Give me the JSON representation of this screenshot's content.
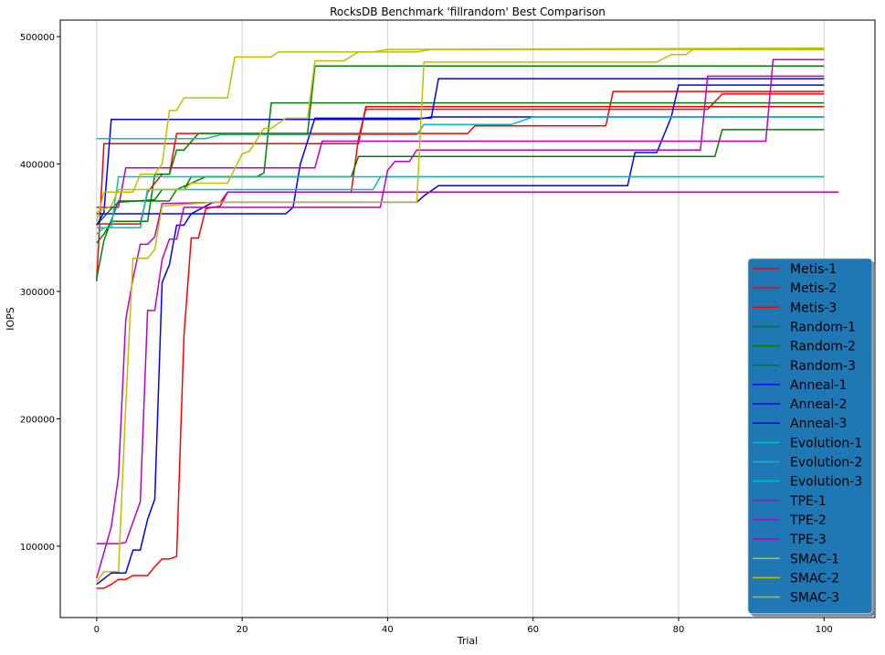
{
  "chart_data": {
    "type": "line",
    "title": "RocksDB Benchmark 'fillrandom' Best Comparison",
    "xlabel": "Trial",
    "ylabel": "IOPS",
    "xlim": [
      -5,
      107
    ],
    "ylim": [
      44000,
      513000
    ],
    "xticks": [
      0,
      20,
      40,
      60,
      80,
      100
    ],
    "yticks": [
      100000,
      200000,
      300000,
      400000,
      500000
    ],
    "grid": "vertical",
    "legend_placement": "lower-right",
    "legend_background": "#1f77b4",
    "series": [
      {
        "name": "Metis-1",
        "color": "#ff0000",
        "points": [
          [
            0,
            308000
          ],
          [
            1,
            416000
          ],
          [
            36,
            416000
          ],
          [
            37,
            445000
          ],
          [
            100,
            445000
          ]
        ]
      },
      {
        "name": "Metis-2",
        "color": "#ff0000",
        "points": [
          [
            0,
            353000
          ],
          [
            6,
            353000
          ],
          [
            7,
            378000
          ],
          [
            9,
            392000
          ],
          [
            10,
            392000
          ],
          [
            11,
            424000
          ],
          [
            51,
            424000
          ],
          [
            52,
            430000
          ],
          [
            70,
            430000
          ],
          [
            71,
            457000
          ],
          [
            100,
            457000
          ]
        ]
      },
      {
        "name": "Metis-3",
        "color": "#ff0000",
        "points": [
          [
            0,
            67000
          ],
          [
            1,
            67000
          ],
          [
            2,
            70000
          ],
          [
            3,
            74000
          ],
          [
            4,
            74000
          ],
          [
            5,
            77000
          ],
          [
            7,
            77000
          ],
          [
            8,
            84000
          ],
          [
            9,
            90000
          ],
          [
            10,
            90000
          ],
          [
            11,
            92000
          ],
          [
            12,
            265000
          ],
          [
            13,
            342000
          ],
          [
            14,
            342000
          ],
          [
            15,
            365000
          ],
          [
            17,
            367000
          ],
          [
            18,
            378000
          ],
          [
            35,
            378000
          ],
          [
            36,
            420000
          ],
          [
            37,
            443000
          ],
          [
            84,
            443000
          ],
          [
            86,
            455000
          ],
          [
            100,
            455000
          ]
        ]
      },
      {
        "name": "Random-1",
        "color": "#008000",
        "points": [
          [
            0,
            310000
          ],
          [
            1,
            340000
          ],
          [
            3,
            371000
          ],
          [
            10,
            371000
          ],
          [
            11,
            380000
          ],
          [
            15,
            390000
          ],
          [
            22,
            390000
          ],
          [
            23,
            393000
          ],
          [
            24,
            448000
          ],
          [
            100,
            448000
          ]
        ]
      },
      {
        "name": "Random-2",
        "color": "#008000",
        "points": [
          [
            0,
            338000
          ],
          [
            1,
            345000
          ],
          [
            2,
            355000
          ],
          [
            7,
            355000
          ],
          [
            8,
            392000
          ],
          [
            10,
            392000
          ],
          [
            11,
            411000
          ],
          [
            12,
            411000
          ],
          [
            14,
            424000
          ],
          [
            29,
            424000
          ],
          [
            30,
            477000
          ],
          [
            100,
            477000
          ]
        ]
      },
      {
        "name": "Random-3",
        "color": "#008000",
        "points": [
          [
            0,
            352000
          ],
          [
            2,
            365000
          ],
          [
            3,
            370000
          ],
          [
            8,
            372000
          ],
          [
            9,
            380000
          ],
          [
            12,
            380000
          ],
          [
            13,
            390000
          ],
          [
            35,
            390000
          ],
          [
            36,
            406000
          ],
          [
            85,
            406000
          ],
          [
            86,
            427000
          ],
          [
            100,
            427000
          ]
        ]
      },
      {
        "name": "Anneal-1",
        "color": "#0000ff",
        "points": [
          [
            0,
            352000
          ],
          [
            1,
            362000
          ],
          [
            2,
            435000
          ],
          [
            44,
            435000
          ],
          [
            46,
            437000
          ],
          [
            100,
            437000
          ]
        ]
      },
      {
        "name": "Anneal-2",
        "color": "#0000ff",
        "points": [
          [
            0,
            361000
          ],
          [
            26,
            361000
          ],
          [
            27,
            366000
          ],
          [
            28,
            400000
          ],
          [
            30,
            436000
          ],
          [
            46,
            436000
          ],
          [
            47,
            467000
          ],
          [
            100,
            467000
          ]
        ]
      },
      {
        "name": "Anneal-3",
        "color": "#0000ff",
        "points": [
          [
            0,
            70000
          ],
          [
            2,
            79000
          ],
          [
            4,
            79000
          ],
          [
            5,
            97000
          ],
          [
            6,
            97000
          ],
          [
            7,
            121000
          ],
          [
            8,
            137000
          ],
          [
            9,
            307000
          ],
          [
            10,
            321000
          ],
          [
            11,
            352000
          ],
          [
            12,
            352000
          ],
          [
            13,
            361000
          ],
          [
            16,
            370000
          ],
          [
            44,
            370000
          ],
          [
            45,
            375000
          ],
          [
            47,
            383000
          ],
          [
            73,
            383000
          ],
          [
            74,
            409000
          ],
          [
            77,
            409000
          ],
          [
            79,
            437000
          ],
          [
            80,
            462000
          ],
          [
            100,
            462000
          ]
        ]
      },
      {
        "name": "Evolution-1",
        "color": "#00bfbf",
        "points": [
          [
            0,
            420000
          ],
          [
            15,
            420000
          ],
          [
            17,
            423000
          ],
          [
            44,
            423000
          ],
          [
            45,
            431000
          ],
          [
            57,
            431000
          ],
          [
            60,
            437000
          ],
          [
            100,
            437000
          ]
        ]
      },
      {
        "name": "Evolution-2",
        "color": "#00bfbf",
        "points": [
          [
            0,
            350000
          ],
          [
            2,
            350000
          ],
          [
            3,
            390000
          ],
          [
            100,
            390000
          ]
        ]
      },
      {
        "name": "Evolution-3",
        "color": "#00bfbf",
        "points": [
          [
            0,
            345000
          ],
          [
            1,
            350000
          ],
          [
            6,
            350000
          ],
          [
            7,
            380000
          ],
          [
            38,
            380000
          ],
          [
            39,
            390000
          ],
          [
            100,
            390000
          ]
        ]
      },
      {
        "name": "TPE-1",
        "color": "#bf00bf",
        "points": [
          [
            0,
            102000
          ],
          [
            3,
            102000
          ],
          [
            4,
            103000
          ],
          [
            6,
            135000
          ],
          [
            7,
            285000
          ],
          [
            8,
            285000
          ],
          [
            9,
            325000
          ],
          [
            10,
            341000
          ],
          [
            11,
            341000
          ],
          [
            12,
            366000
          ],
          [
            39,
            366000
          ],
          [
            40,
            395000
          ],
          [
            41,
            402000
          ],
          [
            43,
            402000
          ],
          [
            44,
            411000
          ],
          [
            83,
            411000
          ],
          [
            84,
            469000
          ],
          [
            100,
            469000
          ]
        ]
      },
      {
        "name": "TPE-2",
        "color": "#bf00bf",
        "points": [
          [
            0,
            366000
          ],
          [
            3,
            366000
          ],
          [
            4,
            397000
          ],
          [
            30,
            397000
          ],
          [
            31,
            418000
          ],
          [
            92,
            418000
          ],
          [
            93,
            482000
          ],
          [
            100,
            482000
          ]
        ]
      },
      {
        "name": "TPE-3",
        "color": "#bf00bf",
        "points": [
          [
            0,
            75000
          ],
          [
            2,
            115000
          ],
          [
            3,
            155000
          ],
          [
            4,
            278000
          ],
          [
            5,
            310000
          ],
          [
            6,
            337000
          ],
          [
            7,
            337000
          ],
          [
            8,
            343000
          ],
          [
            9,
            369000
          ],
          [
            17,
            370000
          ],
          [
            18,
            378000
          ],
          [
            102,
            378000
          ]
        ]
      },
      {
        "name": "SMAC-1",
        "color": "#bfbf00",
        "points": [
          [
            0,
            72000
          ],
          [
            1,
            80000
          ],
          [
            3,
            80000
          ],
          [
            4,
            210000
          ],
          [
            5,
            326000
          ],
          [
            7,
            326000
          ],
          [
            8,
            333000
          ],
          [
            9,
            367000
          ],
          [
            16,
            370000
          ],
          [
            44,
            370000
          ],
          [
            45,
            480000
          ],
          [
            77,
            480000
          ],
          [
            79,
            486000
          ],
          [
            81,
            486000
          ],
          [
            82,
            490000
          ],
          [
            100,
            490000
          ]
        ]
      },
      {
        "name": "SMAC-2",
        "color": "#bfbf00",
        "points": [
          [
            0,
            355000
          ],
          [
            1,
            378000
          ],
          [
            5,
            378000
          ],
          [
            6,
            392000
          ],
          [
            8,
            392000
          ],
          [
            9,
            400000
          ],
          [
            10,
            442000
          ],
          [
            11,
            442000
          ],
          [
            12,
            452000
          ],
          [
            18,
            452000
          ],
          [
            19,
            484000
          ],
          [
            24,
            484000
          ],
          [
            25,
            488000
          ],
          [
            38,
            488000
          ],
          [
            40,
            490000
          ],
          [
            100,
            491000
          ]
        ]
      },
      {
        "name": "SMAC-3",
        "color": "#bfbf00",
        "points": [
          [
            0,
            362000
          ],
          [
            2,
            367000
          ],
          [
            3,
            380000
          ],
          [
            12,
            380000
          ],
          [
            13,
            385000
          ],
          [
            18,
            385000
          ],
          [
            20,
            408000
          ],
          [
            21,
            410000
          ],
          [
            23,
            428000
          ],
          [
            24,
            428000
          ],
          [
            26,
            436000
          ],
          [
            29,
            436000
          ],
          [
            30,
            481000
          ],
          [
            34,
            481000
          ],
          [
            36,
            488000
          ],
          [
            44,
            488000
          ],
          [
            46,
            490000
          ],
          [
            100,
            490000
          ]
        ]
      }
    ]
  }
}
